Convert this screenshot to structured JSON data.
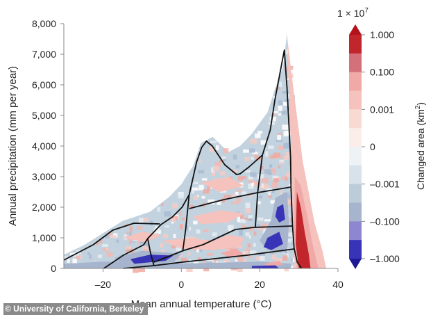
{
  "chart_data": {
    "type": "heatmap",
    "xlabel": "Mean annual temperature (°C)",
    "ylabel": "Annual precipitation (mm per year)",
    "xlim": [
      -30,
      40
    ],
    "ylim": [
      0,
      8000
    ],
    "x_ticks": [
      {
        "value": -20,
        "label": "–20"
      },
      {
        "value": 0,
        "label": "0"
      },
      {
        "value": 20,
        "label": "20"
      },
      {
        "value": 40,
        "label": "40"
      }
    ],
    "y_ticks": [
      {
        "value": 0,
        "label": "0"
      },
      {
        "value": 1000,
        "label": "1,000"
      },
      {
        "value": 2000,
        "label": "2,000"
      },
      {
        "value": 3000,
        "label": "3,000"
      },
      {
        "value": 4000,
        "label": "4,000"
      },
      {
        "value": 5000,
        "label": "5,000"
      },
      {
        "value": 6000,
        "label": "6,000"
      },
      {
        "value": 7000,
        "label": "7,000"
      },
      {
        "value": 8000,
        "label": "8,000"
      }
    ],
    "grid": false,
    "colorbar": {
      "multiplier": "1 × 10",
      "multiplier_exp": "7",
      "label": "Changed area (km",
      "label_sup": "2",
      "label_end": ")",
      "ticks": [
        "1.000",
        "0.100",
        "0.001",
        "0",
        "–0.001",
        "–0.100",
        "–1.000"
      ],
      "colors": [
        "#c1262c",
        "#d4707a",
        "#f0a9a6",
        "#f5c2bd",
        "#f9dad3",
        "#fbeee8",
        "#eef2f5",
        "#d7e2ea",
        "#bccdd9",
        "#a6b5cd",
        "#8e86d0",
        "#3934b7"
      ],
      "over_color": "#b3121b",
      "under_color": "#1d1994"
    },
    "envelope": [
      [
        -30,
        0
      ],
      [
        -30,
        450
      ],
      [
        -25,
        750
      ],
      [
        -20,
        1150
      ],
      [
        -15,
        1550
      ],
      [
        -8,
        1850
      ],
      [
        -3,
        2350
      ],
      [
        0,
        2750
      ],
      [
        3,
        3350
      ],
      [
        5,
        4100
      ],
      [
        8,
        4300
      ],
      [
        12,
        3800
      ],
      [
        15,
        4000
      ],
      [
        18,
        4400
      ],
      [
        22,
        5100
      ],
      [
        24,
        5900
      ],
      [
        26,
        6600
      ],
      [
        27,
        7700
      ],
      [
        28,
        5200
      ],
      [
        29,
        4200
      ],
      [
        30,
        2900
      ],
      [
        31,
        1800
      ],
      [
        30.5,
        700
      ],
      [
        30.5,
        0
      ]
    ],
    "regions": [
      {
        "value": 0.005,
        "points": [
          [
            27,
            7600
          ],
          [
            28.5,
            6000
          ],
          [
            30,
            4500
          ],
          [
            31,
            3500
          ],
          [
            32.5,
            2500
          ],
          [
            34,
            1500
          ],
          [
            36,
            600
          ],
          [
            37,
            0
          ],
          [
            29,
            0
          ],
          [
            28.5,
            1500
          ],
          [
            28,
            4000
          ]
        ]
      },
      {
        "value": 0.05,
        "points": [
          [
            29,
            3000
          ],
          [
            30.5,
            2700
          ],
          [
            32,
            1800
          ],
          [
            33.5,
            800
          ],
          [
            35,
            0
          ],
          [
            29.5,
            0
          ],
          [
            28.8,
            1200
          ]
        ]
      },
      {
        "value": 0.5,
        "points": [
          [
            29.5,
            2500
          ],
          [
            30.5,
            2000
          ],
          [
            31.5,
            1200
          ],
          [
            32.5,
            500
          ],
          [
            33,
            0
          ],
          [
            30,
            0
          ],
          [
            29.2,
            800
          ]
        ]
      },
      {
        "value": -0.05,
        "points": [
          [
            -30,
            0
          ],
          [
            -30,
            150
          ],
          [
            -20,
            220
          ],
          [
            0,
            160
          ],
          [
            20,
            220
          ],
          [
            28,
            160
          ],
          [
            28,
            0
          ]
        ]
      },
      {
        "value": -0.05,
        "points": [
          [
            24,
            2300
          ],
          [
            27,
            2500
          ],
          [
            27.5,
            1500
          ],
          [
            27,
            500
          ],
          [
            22,
            600
          ],
          [
            20,
            900
          ],
          [
            23,
            1600
          ]
        ]
      },
      {
        "value": -0.05,
        "points": [
          [
            -17,
            350
          ],
          [
            -10,
            580
          ],
          [
            0,
            480
          ],
          [
            -2,
            200
          ],
          [
            -15,
            100
          ]
        ]
      },
      {
        "value": 0.005,
        "points": [
          [
            -5,
            900
          ],
          [
            2,
            1000
          ],
          [
            8,
            900
          ],
          [
            12,
            1100
          ],
          [
            16,
            1000
          ],
          [
            15,
            700
          ],
          [
            8,
            600
          ],
          [
            0,
            650
          ]
        ]
      },
      {
        "value": 0.005,
        "points": [
          [
            3,
            1700
          ],
          [
            10,
            1900
          ],
          [
            16,
            1800
          ],
          [
            12,
            1500
          ],
          [
            5,
            1450
          ]
        ]
      },
      {
        "value": 0.005,
        "points": [
          [
            -15,
            1000
          ],
          [
            -10,
            1200
          ],
          [
            -5,
            1100
          ],
          [
            -9,
            850
          ]
        ]
      },
      {
        "value": 0.005,
        "points": [
          [
            5,
            2800
          ],
          [
            12,
            3000
          ],
          [
            16,
            2700
          ],
          [
            10,
            2500
          ]
        ]
      },
      {
        "value": 0.05,
        "points": [
          [
            10,
            500
          ],
          [
            14,
            650
          ],
          [
            16,
            450
          ],
          [
            12,
            380
          ]
        ]
      },
      {
        "value": 0.05,
        "points": [
          [
            21,
            150
          ],
          [
            25,
            250
          ],
          [
            26,
            120
          ],
          [
            22,
            80
          ]
        ]
      },
      {
        "value": -0.5,
        "points": [
          [
            24.5,
            2000
          ],
          [
            26,
            2100
          ],
          [
            26.5,
            1600
          ],
          [
            25,
            1500
          ],
          [
            24,
            1700
          ]
        ]
      },
      {
        "value": -0.5,
        "points": [
          [
            22,
            1000
          ],
          [
            25,
            1200
          ],
          [
            26,
            800
          ],
          [
            23,
            600
          ],
          [
            21,
            700
          ]
        ]
      },
      {
        "value": -0.5,
        "points": [
          [
            -13,
            300
          ],
          [
            -8,
            450
          ],
          [
            -2,
            420
          ],
          [
            -4,
            250
          ],
          [
            -12,
            150
          ]
        ]
      },
      {
        "value": -0.5,
        "points": [
          [
            18,
            80
          ],
          [
            24,
            100
          ],
          [
            25,
            0
          ],
          [
            18,
            0
          ]
        ]
      }
    ],
    "boundary_lines": [
      [
        [
          -30,
          273
        ],
        [
          -22.5,
          773
        ],
        [
          -17.5,
          1250
        ],
        [
          -12.1,
          1477
        ],
        [
          -5.5,
          1455
        ]
      ],
      [
        [
          -19.8,
          0
        ],
        [
          -14.8,
          432
        ],
        [
          -9.6,
          773
        ],
        [
          -8.6,
          977
        ],
        [
          -5.2,
          1432
        ],
        [
          -2.3,
          1682
        ],
        [
          0.2,
          2000
        ],
        [
          2,
          2409
        ],
        [
          3.9,
          3477
        ],
        [
          5.2,
          3955
        ],
        [
          6.4,
          4159
        ],
        [
          7.9,
          4000
        ],
        [
          11.1,
          3386
        ],
        [
          14.1,
          3068
        ],
        [
          15,
          3091
        ],
        [
          17.3,
          3318
        ],
        [
          20.7,
          3705
        ],
        [
          22.7,
          4523
        ],
        [
          23.9,
          5523
        ],
        [
          26.3,
          7136
        ],
        [
          27,
          5886
        ],
        [
          27.9,
          3614
        ],
        [
          28,
          2636
        ],
        [
          28.4,
          1386
        ],
        [
          28.8,
          659
        ],
        [
          29.6,
          205
        ],
        [
          30.7,
          0
        ]
      ],
      [
        [
          -8.6,
          977
        ],
        [
          -7.9,
          523
        ],
        [
          -7,
          91
        ]
      ],
      [
        [
          -14.8,
          0
        ],
        [
          -7,
          91
        ],
        [
          0.2,
          205
        ],
        [
          16.8,
          432
        ],
        [
          28.8,
          636
        ]
      ],
      [
        [
          -7,
          205
        ],
        [
          0.7,
          591
        ],
        [
          5.5,
          773
        ],
        [
          13.8,
          1273
        ],
        [
          18.6,
          1341
        ],
        [
          28.4,
          1386
        ]
      ],
      [
        [
          0.4,
          591
        ],
        [
          1.1,
          1273
        ],
        [
          2,
          2409
        ]
      ],
      [
        [
          2,
          1955
        ],
        [
          10.9,
          2250
        ],
        [
          19.5,
          2477
        ],
        [
          28,
          2659
        ]
      ],
      [
        [
          20.7,
          3705
        ],
        [
          19.5,
          2477
        ],
        [
          18.9,
          1341
        ]
      ]
    ]
  },
  "credit": "© University of California, Berkeley"
}
